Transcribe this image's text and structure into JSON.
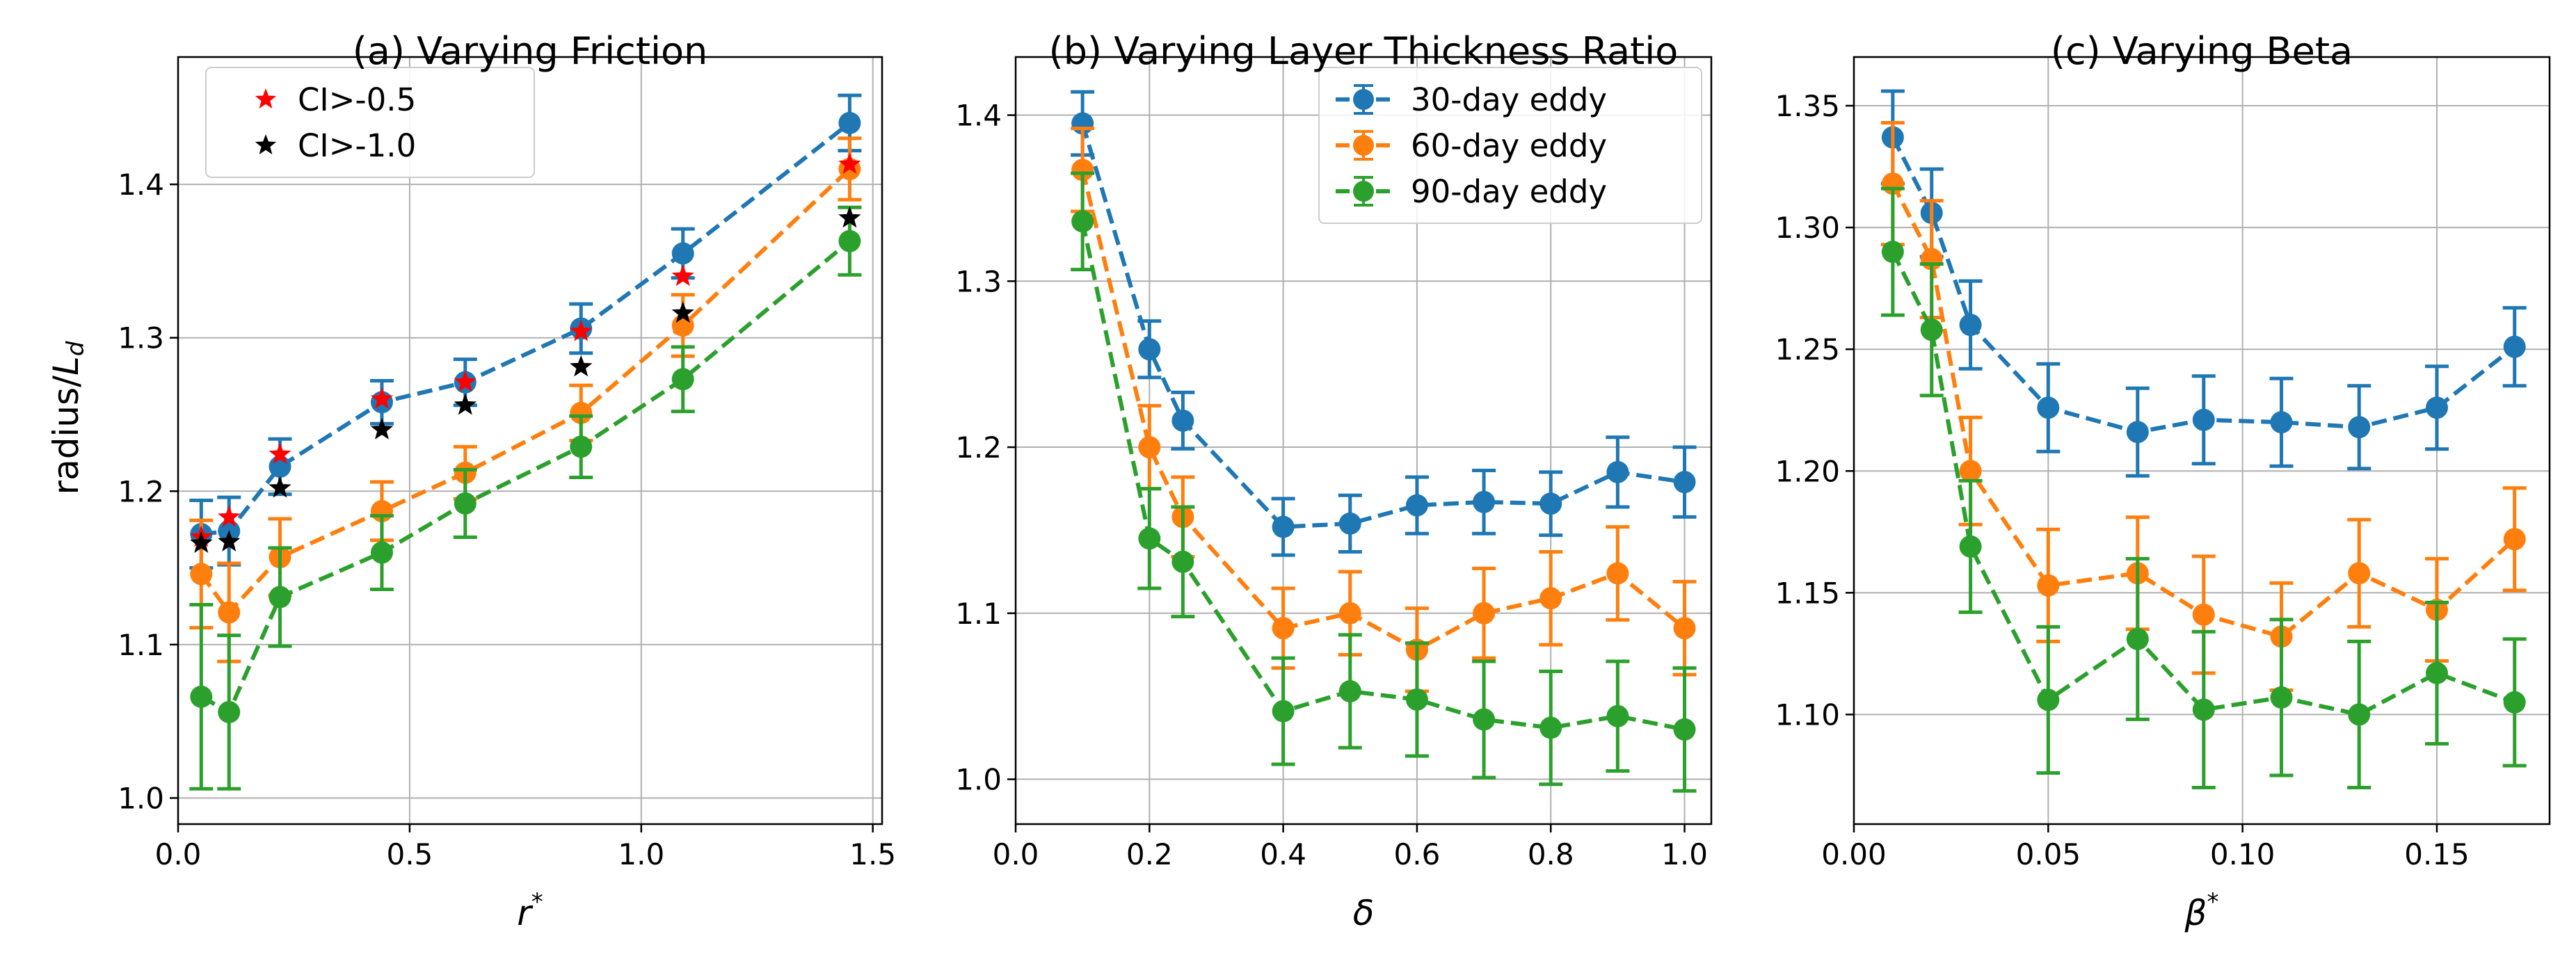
{
  "colors": {
    "blue": "#1f77b4",
    "orange": "#ff7f0e",
    "green": "#2ca02c",
    "red": "#ff0000",
    "black": "#000000"
  },
  "shared_ylabel": "radius/",
  "shared_ylabel_sym": "L",
  "shared_ylabel_sub": "d",
  "chart_data": [
    {
      "id": "a",
      "type": "line",
      "title": "(a) Varying Friction",
      "xlabel": "r",
      "xlabel_sup": "*",
      "ylabel": "radius/L_d",
      "xlim": [
        0.0,
        1.52
      ],
      "ylim": [
        0.983,
        1.483
      ],
      "xticks": [
        0.0,
        0.5,
        1.0,
        1.5
      ],
      "xticklabels": [
        "0.0",
        "0.5",
        "1.0",
        "1.5"
      ],
      "yticks": [
        1.0,
        1.1,
        1.2,
        1.3,
        1.4
      ],
      "yticklabels": [
        "1.0",
        "1.1",
        "1.2",
        "1.3",
        "1.4"
      ],
      "grid": true,
      "legend": {
        "location": "top-left",
        "entries": [
          {
            "label": "CI>-0.5",
            "marker": "star",
            "color": "red"
          },
          {
            "label": "CI>-1.0",
            "marker": "star",
            "color": "black"
          }
        ]
      },
      "x": [
        0.05,
        0.11,
        0.22,
        0.44,
        0.62,
        0.87,
        1.09,
        1.45
      ],
      "series": [
        {
          "name": "30-day eddy",
          "color": "blue",
          "values": [
            1.172,
            1.174,
            1.216,
            1.258,
            1.271,
            1.306,
            1.355,
            1.44
          ],
          "errors": [
            0.022,
            0.022,
            0.018,
            0.014,
            0.015,
            0.016,
            0.016,
            0.018
          ]
        },
        {
          "name": "60-day eddy",
          "color": "orange",
          "values": [
            1.146,
            1.121,
            1.157,
            1.187,
            1.212,
            1.251,
            1.308,
            1.41
          ],
          "errors": [
            0.035,
            0.032,
            0.025,
            0.019,
            0.017,
            0.018,
            0.02,
            0.02
          ]
        },
        {
          "name": "90-day eddy",
          "color": "green",
          "values": [
            1.066,
            1.056,
            1.131,
            1.16,
            1.192,
            1.229,
            1.273,
            1.363
          ],
          "errors": [
            0.06,
            0.05,
            0.032,
            0.024,
            0.022,
            0.02,
            0.021,
            0.022
          ]
        }
      ],
      "stars": [
        {
          "name": "CI>-0.5",
          "color": "red",
          "values": [
            1.17,
            1.183,
            1.224,
            1.26,
            1.271,
            1.304,
            1.34,
            1.413
          ]
        },
        {
          "name": "CI>-1.0",
          "color": "black",
          "values": [
            1.166,
            1.167,
            1.202,
            1.24,
            1.256,
            1.281,
            1.316,
            1.378
          ]
        }
      ]
    },
    {
      "id": "b",
      "type": "line",
      "title": "(b) Varying Layer Thickness Ratio",
      "xlabel": "δ",
      "xlabel_sup": "",
      "xlim": [
        0.0,
        1.04
      ],
      "ylim": [
        0.973,
        1.435
      ],
      "xticks": [
        0.0,
        0.2,
        0.4,
        0.6,
        0.8,
        1.0
      ],
      "xticklabels": [
        "0.0",
        "0.2",
        "0.4",
        "0.6",
        "0.8",
        "1.0"
      ],
      "yticks": [
        1.0,
        1.1,
        1.2,
        1.3,
        1.4
      ],
      "yticklabels": [
        "1.0",
        "1.1",
        "1.2",
        "1.3",
        "1.4"
      ],
      "grid": true,
      "legend": {
        "location": "top-right",
        "entries": [
          {
            "label": "30-day eddy",
            "marker": "circle",
            "color": "blue"
          },
          {
            "label": "60-day eddy",
            "marker": "circle",
            "color": "orange"
          },
          {
            "label": "90-day eddy",
            "marker": "circle",
            "color": "green"
          }
        ]
      },
      "x": [
        0.1,
        0.2,
        0.25,
        0.4,
        0.5,
        0.6,
        0.7,
        0.8,
        0.9,
        1.0
      ],
      "series": [
        {
          "name": "30-day eddy",
          "color": "blue",
          "values": [
            1.395,
            1.259,
            1.216,
            1.152,
            1.154,
            1.165,
            1.167,
            1.166,
            1.185,
            1.179
          ],
          "errors": [
            0.019,
            0.017,
            0.017,
            0.017,
            0.017,
            0.017,
            0.019,
            0.019,
            0.021,
            0.021
          ]
        },
        {
          "name": "60-day eddy",
          "color": "orange",
          "values": [
            1.367,
            1.2,
            1.158,
            1.091,
            1.1,
            1.078,
            1.1,
            1.109,
            1.124,
            1.091
          ],
          "errors": [
            0.025,
            0.025,
            0.024,
            0.024,
            0.025,
            0.025,
            0.027,
            0.028,
            0.028,
            0.028
          ]
        },
        {
          "name": "90-day eddy",
          "color": "green",
          "values": [
            1.336,
            1.145,
            1.131,
            1.041,
            1.053,
            1.048,
            1.036,
            1.031,
            1.038,
            1.03
          ],
          "errors": [
            0.029,
            0.03,
            0.033,
            0.032,
            0.034,
            0.034,
            0.035,
            0.034,
            0.033,
            0.037
          ]
        }
      ]
    },
    {
      "id": "c",
      "type": "line",
      "title": "(c) Varying Beta",
      "xlabel": "β",
      "xlabel_sup": "*",
      "xlim": [
        0.0,
        0.179
      ],
      "ylim": [
        1.055,
        1.37
      ],
      "xticks": [
        0.0,
        0.05,
        0.1,
        0.15
      ],
      "xticklabels": [
        "0.00",
        "0.05",
        "0.10",
        "0.15"
      ],
      "yticks": [
        1.1,
        1.15,
        1.2,
        1.25,
        1.3,
        1.35
      ],
      "yticklabels": [
        "1.10",
        "1.15",
        "1.20",
        "1.25",
        "1.30",
        "1.35"
      ],
      "grid": true,
      "legend": null,
      "x": [
        0.01,
        0.02,
        0.03,
        0.05,
        0.073,
        0.09,
        0.11,
        0.13,
        0.15,
        0.17
      ],
      "series": [
        {
          "name": "30-day eddy",
          "color": "blue",
          "values": [
            1.337,
            1.306,
            1.26,
            1.226,
            1.216,
            1.221,
            1.22,
            1.218,
            1.226,
            1.251
          ],
          "errors": [
            0.019,
            0.018,
            0.018,
            0.018,
            0.018,
            0.018,
            0.018,
            0.017,
            0.017,
            0.016
          ]
        },
        {
          "name": "60-day eddy",
          "color": "orange",
          "values": [
            1.318,
            1.287,
            1.2,
            1.153,
            1.158,
            1.141,
            1.132,
            1.158,
            1.143,
            1.172
          ],
          "errors": [
            0.025,
            0.024,
            0.022,
            0.023,
            0.023,
            0.024,
            0.022,
            0.022,
            0.021,
            0.021
          ]
        },
        {
          "name": "90-day eddy",
          "color": "green",
          "values": [
            1.29,
            1.258,
            1.169,
            1.106,
            1.131,
            1.102,
            1.107,
            1.1,
            1.117,
            1.105
          ],
          "errors": [
            0.026,
            0.027,
            0.027,
            0.03,
            0.033,
            0.032,
            0.032,
            0.03,
            0.029,
            0.026
          ]
        }
      ]
    }
  ]
}
